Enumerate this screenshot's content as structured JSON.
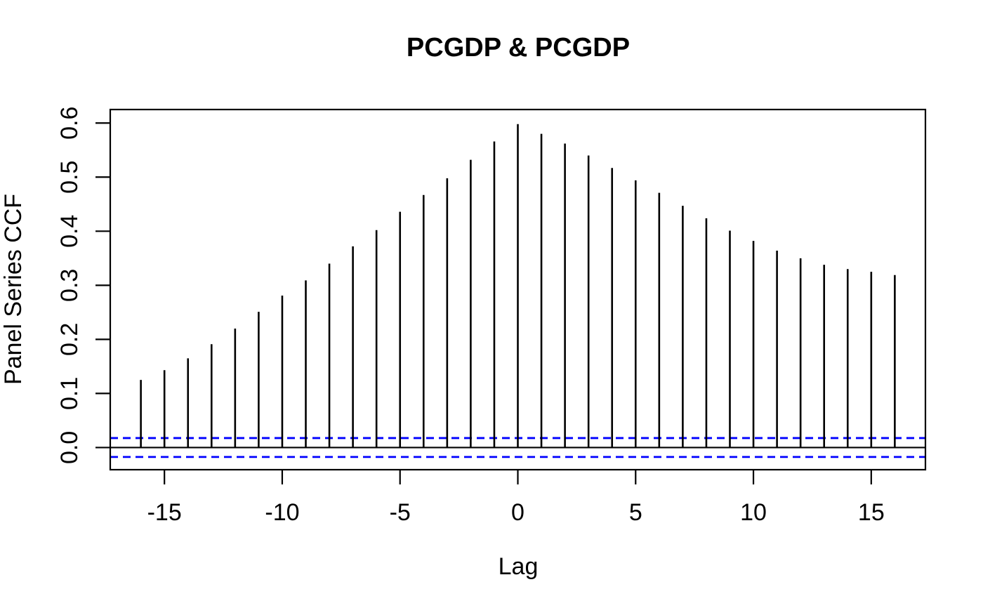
{
  "chart_data": {
    "type": "bar",
    "variant": "ccf-stem-plot",
    "title": "PCGDP & PCGDP",
    "xlabel": "Lag",
    "ylabel": "Panel Series CCF",
    "x": [
      -16,
      -15,
      -14,
      -13,
      -12,
      -11,
      -10,
      -9,
      -8,
      -7,
      -6,
      -5,
      -4,
      -3,
      -2,
      -1,
      0,
      1,
      2,
      3,
      4,
      5,
      6,
      7,
      8,
      9,
      10,
      11,
      12,
      13,
      14,
      15,
      16
    ],
    "values": [
      0.125,
      0.143,
      0.165,
      0.191,
      0.22,
      0.251,
      0.281,
      0.309,
      0.34,
      0.372,
      0.402,
      0.436,
      0.467,
      0.498,
      0.532,
      0.566,
      0.598,
      0.58,
      0.562,
      0.54,
      0.517,
      0.494,
      0.471,
      0.447,
      0.424,
      0.401,
      0.382,
      0.364,
      0.35,
      0.338,
      0.33,
      0.325,
      0.319
    ],
    "conf_bound": 0.0175,
    "conf_bounds": [
      0.0175,
      -0.0175
    ],
    "zero_line": 0,
    "xlim": [
      -17.3,
      17.3
    ],
    "ylim": [
      -0.041,
      0.625
    ],
    "x_ticks": [
      -15,
      -10,
      -5,
      0,
      5,
      10,
      15
    ],
    "x_tick_labels": [
      "-15",
      "-10",
      "-5",
      "0",
      "5",
      "10",
      "15"
    ],
    "y_ticks": [
      0.0,
      0.1,
      0.2,
      0.3,
      0.4,
      0.5,
      0.6
    ],
    "y_tick_labels": [
      "0.0",
      "0.1",
      "0.2",
      "0.3",
      "0.4",
      "0.5",
      "0.6"
    ],
    "grid": false,
    "legend": "none",
    "colors": {
      "stem": "#000000",
      "conf_dashed": "#0000FF",
      "axis": "#000000",
      "text": "#000000",
      "background": "#FFFFFF"
    }
  }
}
